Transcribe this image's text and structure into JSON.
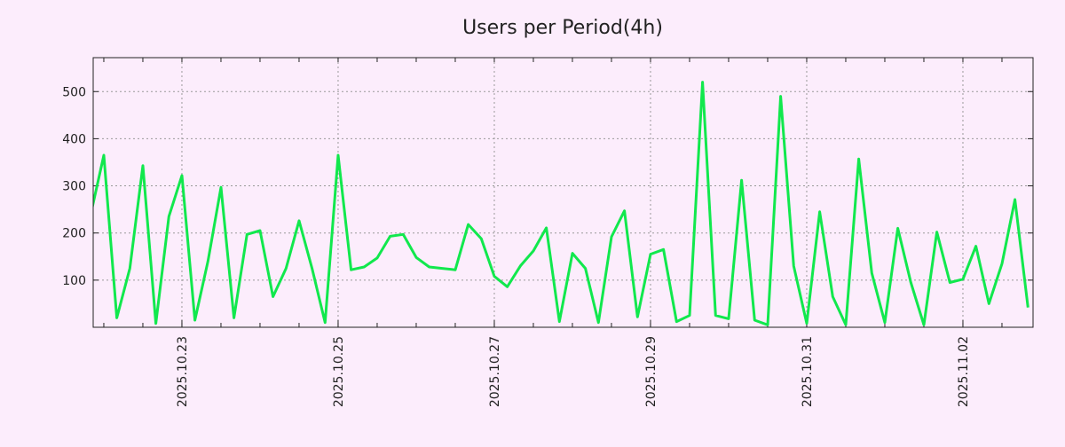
{
  "chart_data": {
    "type": "line",
    "title": "Users per Period(4h)",
    "xlabel": "",
    "ylabel": "",
    "x_origin_date": "2025.10.21",
    "start_offset_days": 0.8333,
    "step_hours": 4,
    "xlim_days": [
      0.864,
      12.898
    ],
    "ylim": [
      0,
      572
    ],
    "yticks": [
      100,
      200,
      300,
      400,
      500
    ],
    "xticks": [
      {
        "day": 2,
        "label": "2025.10.23"
      },
      {
        "day": 4,
        "label": "2025.10.25"
      },
      {
        "day": 6,
        "label": "2025.10.27"
      },
      {
        "day": 8,
        "label": "2025.10.29"
      },
      {
        "day": 10,
        "label": "2025.10.31"
      },
      {
        "day": 12,
        "label": "2025.11.02"
      }
    ],
    "grid": true,
    "line_color": "#11e84d",
    "series": [
      {
        "name": "Users",
        "values": [
          240,
          365,
          20,
          125,
          343,
          8,
          235,
          322,
          15,
          140,
          297,
          20,
          197,
          205,
          65,
          125,
          226,
          125,
          10,
          365,
          122,
          128,
          147,
          193,
          197,
          148,
          128,
          125,
          122,
          218,
          188,
          108,
          86,
          130,
          162,
          211,
          12,
          157,
          125,
          10,
          192,
          247,
          22,
          155,
          165,
          12,
          25,
          520,
          25,
          18,
          312,
          15,
          5,
          490,
          130,
          8,
          245,
          65,
          5,
          357,
          115,
          10,
          210,
          95,
          5,
          202,
          95,
          102,
          172,
          50,
          135,
          271,
          42
        ]
      }
    ]
  }
}
